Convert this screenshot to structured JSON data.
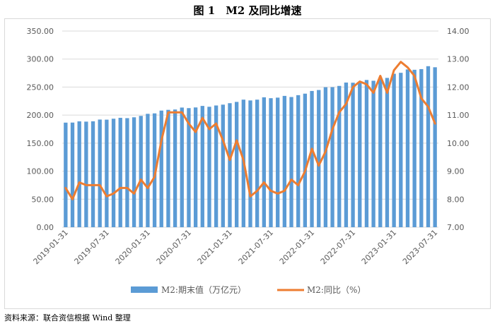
{
  "title": "图 1　M2 及同比增速",
  "source": "资料来源：联合资信根据 Wind 整理",
  "chart_data": {
    "type": "bar+line",
    "title": "图 1　M2 及同比增速",
    "y_left": {
      "min": 0,
      "max": 350,
      "step": 50,
      "tick_labels": [
        "0.00",
        "50.00",
        "100.00",
        "150.00",
        "200.00",
        "250.00",
        "300.00",
        "350.00"
      ]
    },
    "y_right": {
      "min": 7,
      "max": 14,
      "step": 1,
      "tick_labels": [
        "7.00",
        "8.00",
        "9.00",
        "10.00",
        "11.00",
        "12.00",
        "13.00",
        "14.00"
      ]
    },
    "x_tick_labels": [
      "2019-01-31",
      "2019-07-31",
      "2020-01-31",
      "2020-07-31",
      "2021-01-31",
      "2021-07-31",
      "2022-01-31",
      "2022-07-31",
      "2023-01-31",
      "2023-07-31"
    ],
    "x_tick_every": 6,
    "grid": true,
    "legend_position": "bottom",
    "colors": {
      "bar": "#5b9bd5",
      "line": "#ed7d31",
      "grid": "#d9d9d9",
      "axis_text": "#595959"
    },
    "series": [
      {
        "name": "M2:期末值（万亿元）",
        "type": "bar",
        "axis": "left",
        "values": [
          186.6,
          186.7,
          188.9,
          188.4,
          189.0,
          192.1,
          191.9,
          193.6,
          195.2,
          194.6,
          196.1,
          198.6,
          202.3,
          203.1,
          208.1,
          209.4,
          210.0,
          213.5,
          212.5,
          213.7,
          216.4,
          214.9,
          217.2,
          218.7,
          221.3,
          223.6,
          227.6,
          226.2,
          227.6,
          231.8,
          230.2,
          231.2,
          234.3,
          232.3,
          235.6,
          238.3,
          243.1,
          244.8,
          249.8,
          249.9,
          252.1,
          258.1,
          257.8,
          259.5,
          262.7,
          261.3,
          264.7,
          266.4,
          273.8,
          275.5,
          281.5,
          280.9,
          282.1,
          287.3,
          285.4
        ]
      },
      {
        "name": "M2:同比（%）",
        "type": "line",
        "axis": "right",
        "values": [
          8.4,
          8.0,
          8.6,
          8.5,
          8.5,
          8.5,
          8.1,
          8.2,
          8.4,
          8.4,
          8.2,
          8.7,
          8.4,
          8.8,
          10.1,
          11.1,
          11.1,
          11.1,
          10.7,
          10.4,
          10.9,
          10.5,
          10.7,
          10.1,
          9.4,
          10.1,
          9.4,
          8.1,
          8.3,
          8.6,
          8.3,
          8.2,
          8.3,
          8.7,
          8.5,
          9.0,
          9.8,
          9.2,
          9.7,
          10.5,
          11.1,
          11.4,
          12.0,
          12.2,
          12.1,
          11.8,
          12.4,
          11.8,
          12.6,
          12.9,
          12.7,
          12.4,
          11.6,
          11.3,
          10.7
        ]
      }
    ]
  }
}
